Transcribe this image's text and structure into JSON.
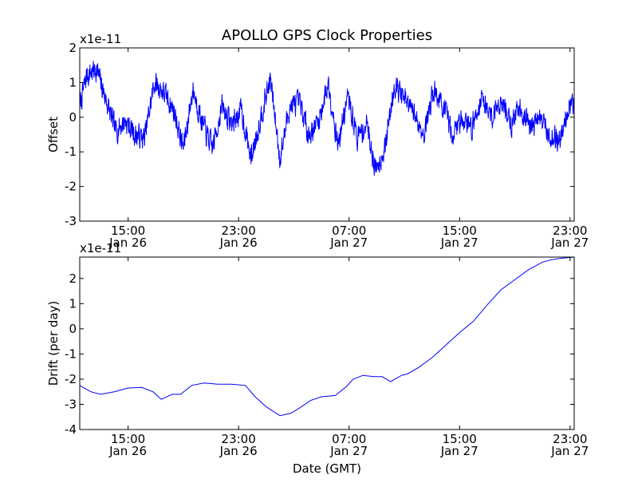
{
  "chart_data": {
    "type": "line",
    "title": "APOLLO GPS Clock Properties",
    "xlabel": "Date (GMT)",
    "line_color": "#0000ff",
    "x_ticks": [
      {
        "hour": 15,
        "time": "15:00",
        "date": "Jan 26"
      },
      {
        "hour": 23,
        "time": "23:00",
        "date": "Jan 26"
      },
      {
        "hour": 31,
        "time": "07:00",
        "date": "Jan 27"
      },
      {
        "hour": 39,
        "time": "15:00",
        "date": "Jan 27"
      },
      {
        "hour": 47,
        "time": "23:00",
        "date": "Jan 27"
      }
    ],
    "xlim_hours": [
      11.5,
      47.3
    ],
    "panels": [
      {
        "ylabel": "Offset",
        "offset_text": "x1e-11",
        "ylim": [
          -3,
          2
        ],
        "yticks": [
          -3,
          -2,
          -1,
          0,
          1,
          2
        ],
        "series": [
          {
            "name": "Offset",
            "noisy": true,
            "noise_amplitude": 0.3,
            "noise_seed": 7,
            "x": [
              11.5,
              12.0,
              12.7,
              13.4,
              14.1,
              14.8,
              15.5,
              16.2,
              16.9,
              17.6,
              18.3,
              19.0,
              19.7,
              20.4,
              21.1,
              21.8,
              22.5,
              23.2,
              23.9,
              24.6,
              25.3,
              26.0,
              26.7,
              27.4,
              28.1,
              28.8,
              29.5,
              30.2,
              30.9,
              31.6,
              32.3,
              32.9,
              33.6,
              34.3,
              35.0,
              35.7,
              36.4,
              37.1,
              37.8,
              38.5,
              39.2,
              39.9,
              40.6,
              41.3,
              42.0,
              42.7,
              43.4,
              44.1,
              44.8,
              45.5,
              46.2,
              46.9,
              47.3
            ],
            "y": [
              0.3,
              1.2,
              1.4,
              0.5,
              -0.4,
              -0.1,
              -0.5,
              -0.6,
              1.0,
              0.7,
              0.2,
              -0.9,
              0.8,
              -0.2,
              -0.9,
              0.3,
              -0.2,
              0.2,
              -1.2,
              0.0,
              1.1,
              -1.2,
              0.3,
              0.4,
              -0.5,
              -0.1,
              1.0,
              -0.8,
              0.6,
              -0.6,
              -0.2,
              -1.5,
              -0.9,
              1.0,
              0.5,
              0.1,
              -0.5,
              0.8,
              0.3,
              -0.5,
              0.0,
              -0.3,
              0.6,
              0.0,
              0.5,
              -0.2,
              0.3,
              -0.3,
              0.0,
              -0.5,
              -0.7,
              0.3,
              0.3
            ]
          }
        ]
      },
      {
        "ylabel": "Drift (per day)",
        "offset_text": "x1e-11",
        "ylim": [
          -4,
          2.85
        ],
        "yticks": [
          -4,
          -3,
          -2,
          -1,
          0,
          1,
          2
        ],
        "series": [
          {
            "name": "Drift",
            "noisy": false,
            "x": [
              11.5,
              12.3,
              13.0,
              14.0,
              15.0,
              16.0,
              16.8,
              17.4,
              18.2,
              18.8,
              19.6,
              20.5,
              21.5,
              22.5,
              23.5,
              24.2,
              25.0,
              26.0,
              26.8,
              27.4,
              28.2,
              29.0,
              30.0,
              30.8,
              31.3,
              32.0,
              32.8,
              33.4,
              34.0,
              34.8,
              35.2,
              36.0,
              37.0,
              38.0,
              39.0,
              40.0,
              41.0,
              42.0,
              43.0,
              44.0,
              45.0,
              45.7,
              46.3,
              47.3
            ],
            "y": [
              -2.25,
              -2.5,
              -2.6,
              -2.5,
              -2.35,
              -2.33,
              -2.5,
              -2.8,
              -2.6,
              -2.6,
              -2.25,
              -2.15,
              -2.2,
              -2.2,
              -2.25,
              -2.7,
              -3.1,
              -3.45,
              -3.35,
              -3.15,
              -2.85,
              -2.7,
              -2.65,
              -2.3,
              -2.0,
              -1.85,
              -1.9,
              -1.9,
              -2.1,
              -1.85,
              -1.8,
              -1.55,
              -1.15,
              -0.65,
              -0.15,
              0.3,
              0.95,
              1.55,
              1.95,
              2.35,
              2.65,
              2.75,
              2.8,
              2.85
            ]
          }
        ]
      }
    ]
  }
}
